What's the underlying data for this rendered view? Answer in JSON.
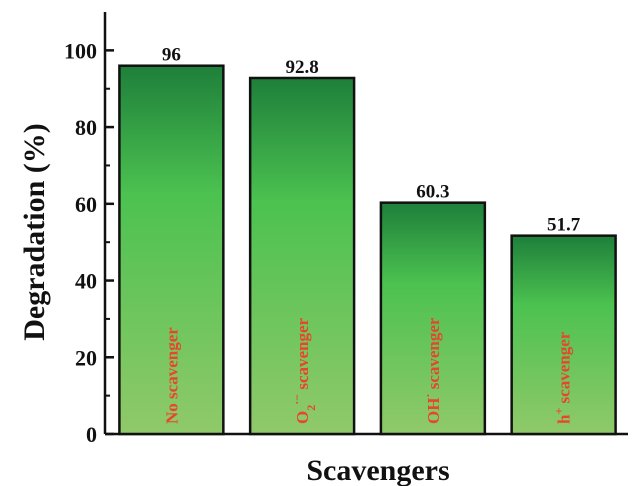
{
  "chart_data": {
    "type": "bar",
    "categories": [
      "No scavenger",
      "O2•− scavenger",
      "OH• scavenger",
      "h+ scavenger"
    ],
    "bar_labels": [
      {
        "main": "No scavenger",
        "sub": "",
        "sup": ""
      },
      {
        "main": "O",
        "sub": "2",
        "sup": "·−",
        "rest": " scavenger"
      },
      {
        "main": "OH",
        "sub": "",
        "sup": "·",
        "rest": " scavenger"
      },
      {
        "main": "h",
        "sub": "",
        "sup": "+",
        "rest": " scavenger"
      }
    ],
    "values": [
      96,
      92.8,
      60.3,
      51.7
    ],
    "value_labels": [
      "96",
      "92.8",
      "60.3",
      "51.7"
    ],
    "xlabel": "Scavengers",
    "ylabel": "Degradation (%)",
    "ylim": [
      0,
      110
    ],
    "yticks": [
      0,
      20,
      40,
      60,
      80,
      100
    ],
    "grid": false,
    "legend": "none",
    "colors": {
      "bar_top": "#1e7f3a",
      "bar_mid": "#4cc250",
      "bar_bottom": "#90c96a",
      "bar_label": "#e8452a",
      "axis": "#111111"
    }
  }
}
